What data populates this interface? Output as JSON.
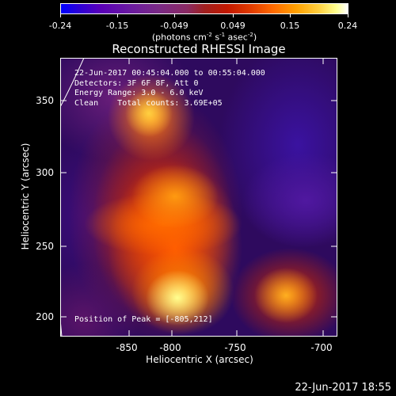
{
  "colorbar": {
    "ticks": [
      "-0.24",
      "-0.15",
      "-0.049",
      "0.049",
      "0.15",
      "0.24"
    ],
    "units": "(photons cm",
    "units_exp1": "-2",
    "units_mid1": " s",
    "units_exp2": "-1",
    "units_mid2": " asec",
    "units_exp3": "-2",
    "units_end": ")"
  },
  "title": "Reconstructed RHESSI Image",
  "info_lines": {
    "time": "22-Jun-2017 00:45:04.000 to 00:55:04.000",
    "detectors": "Detectors: 3F 6F 8F, Att 0",
    "energy": "Energy Range: 3.0 - 6.0 keV",
    "clean": "Clean    Total counts: 3.69E+05"
  },
  "peak_text": "Position of Peak = [-805,212]",
  "axes": {
    "xlabel": "Heliocentric X (arcsec)",
    "ylabel": "Heliocentric Y (arcsec)",
    "xticks": [
      "-850",
      "-800",
      "-750",
      "-700"
    ],
    "yticks": [
      "200",
      "250",
      "300",
      "350"
    ]
  },
  "footer_date": "22-Jun-2017 18:55"
}
